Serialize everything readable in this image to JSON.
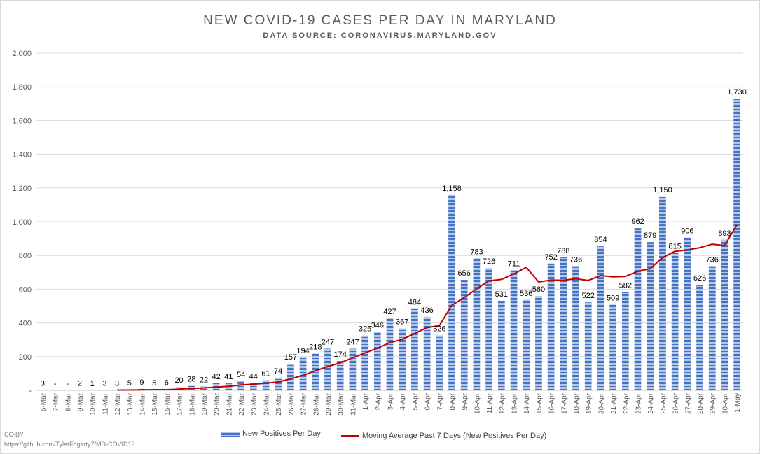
{
  "chart_data": {
    "type": "bar",
    "title": "NEW COVID-19 CASES PER DAY IN MARYLAND",
    "subtitle": "DATA SOURCE: CORONAVIRUS.MARYLAND.GOV",
    "ylim": [
      0,
      2000
    ],
    "yticks": [
      "-",
      "200",
      "400",
      "600",
      "800",
      "1,000",
      "1,200",
      "1,400",
      "1,600",
      "1,800",
      "2,000"
    ],
    "grid": true,
    "legend_position": "bottom",
    "categories": [
      "6-Mar",
      "7-Mar",
      "8-Mar",
      "9-Mar",
      "10-Mar",
      "11-Mar",
      "12-Mar",
      "13-Mar",
      "14-Mar",
      "15-Mar",
      "16-Mar",
      "17-Mar",
      "18-Mar",
      "19-Mar",
      "20-Mar",
      "21-Mar",
      "22-Mar",
      "23-Mar",
      "24-Mar",
      "25-Mar",
      "26-Mar",
      "27-Mar",
      "28-Mar",
      "29-Mar",
      "30-Mar",
      "31-Mar",
      "1-Apr",
      "2-Apr",
      "3-Apr",
      "4-Apr",
      "5-Apr",
      "6-Apr",
      "7-Apr",
      "8-Apr",
      "9-Apr",
      "10-Apr",
      "11-Apr",
      "12-Apr",
      "13-Apr",
      "14-Apr",
      "15-Apr",
      "16-Apr",
      "17-Apr",
      "18-Apr",
      "19-Apr",
      "20-Apr",
      "21-Apr",
      "22-Apr",
      "23-Apr",
      "24-Apr",
      "25-Apr",
      "26-Apr",
      "27-Apr",
      "28-Apr",
      "29-Apr",
      "30-Apr",
      "1-May"
    ],
    "series": [
      {
        "name": "New Positives Per Day",
        "kind": "bar",
        "color": "#4472c4",
        "values": [
          3,
          0,
          0,
          2,
          1,
          3,
          3,
          5,
          9,
          5,
          6,
          20,
          28,
          22,
          42,
          41,
          54,
          44,
          61,
          74,
          157,
          194,
          218,
          247,
          174,
          247,
          325,
          346,
          427,
          367,
          484,
          436,
          326,
          1158,
          656,
          783,
          726,
          531,
          711,
          536,
          560,
          752,
          788,
          736,
          522,
          854,
          509,
          582,
          962,
          879,
          1150,
          815,
          906,
          626,
          736,
          893,
          1730
        ],
        "labels": [
          "3",
          "-",
          "-",
          "2",
          "1",
          "3",
          "3",
          "5",
          "9",
          "5",
          "6",
          "20",
          "28",
          "22",
          "42",
          "41",
          "54",
          "44",
          "61",
          "74",
          "157",
          "194",
          "218",
          "247",
          "174",
          "247",
          "325",
          "346",
          "427",
          "367",
          "484",
          "436",
          "326",
          "1,158",
          "656",
          "783",
          "726",
          "531",
          "711",
          "536",
          "560",
          "752",
          "788",
          "736",
          "522",
          "854",
          "509",
          "582",
          "962",
          "879",
          "1,150",
          "815",
          "906",
          "626",
          "736",
          "893",
          "1,730"
        ]
      },
      {
        "name": "Moving Average Past 7 Days (New Positives Per Day)",
        "kind": "line",
        "color": "#c00000",
        "values": [
          null,
          null,
          null,
          null,
          null,
          null,
          2,
          2,
          3,
          4,
          4,
          7,
          11,
          14,
          19,
          24,
          32,
          36,
          42,
          50,
          68,
          89,
          116,
          141,
          163,
          193,
          222,
          250,
          283,
          302,
          337,
          372,
          384,
          505,
          550,
          602,
          650,
          658,
          691,
          730,
          643,
          654,
          653,
          662,
          652,
          681,
          673,
          676,
          706,
          722,
          787,
          825,
          833,
          846,
          867,
          859,
          982
        ]
      }
    ],
    "credit_lines": [
      "CC-BY",
      "https://github.com/TylerFogarty7/MD-COVID19"
    ]
  }
}
